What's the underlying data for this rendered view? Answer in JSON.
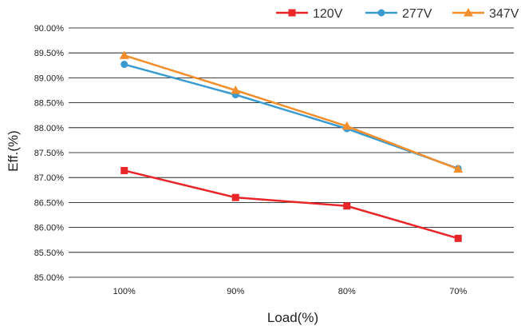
{
  "chart_data": {
    "type": "line",
    "title": "",
    "xlabel": "Load(%)",
    "ylabel": "Eff.(%)",
    "categories": [
      "100%",
      "90%",
      "80%",
      "70%"
    ],
    "ylim": [
      85.0,
      90.0
    ],
    "yticks": [
      85.0,
      85.5,
      86.0,
      86.5,
      87.0,
      87.5,
      88.0,
      88.5,
      89.0,
      89.5,
      90.0
    ],
    "ytick_labels": [
      "85.00%",
      "85.50%",
      "86.00%",
      "86.50%",
      "87.00%",
      "87.50%",
      "88.00%",
      "88.50%",
      "89.00%",
      "89.50%",
      "90.00%"
    ],
    "grid": true,
    "legend_position": "top-right",
    "series": [
      {
        "name": "120V",
        "color": "#e8262a",
        "marker": "square",
        "values": [
          87.14,
          86.6,
          86.43,
          85.78
        ]
      },
      {
        "name": "277V",
        "color": "#3a9bd0",
        "marker": "circle",
        "values": [
          89.27,
          88.66,
          87.98,
          87.18
        ]
      },
      {
        "name": "347V",
        "color": "#f28e2b",
        "marker": "triangle",
        "values": [
          89.45,
          88.75,
          88.03,
          87.17
        ]
      }
    ]
  }
}
